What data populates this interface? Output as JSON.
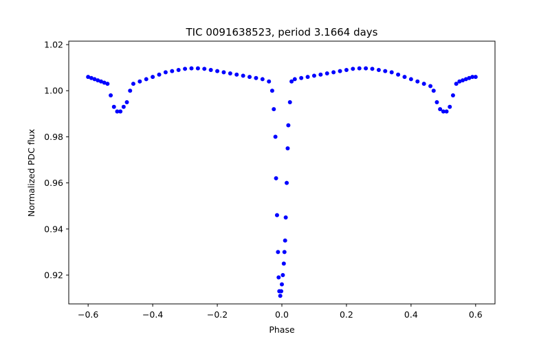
{
  "chart_data": {
    "type": "scatter",
    "title": "TIC 0091638523, period 3.1664 days",
    "xlabel": "Phase",
    "ylabel": "Normalized PDC flux",
    "xlim": [
      -0.66,
      0.66
    ],
    "ylim": [
      0.9075,
      1.0215
    ],
    "x_ticks": [
      -0.6,
      -0.4,
      -0.2,
      0.0,
      0.2,
      0.4,
      0.6
    ],
    "x_tick_labels": [
      "−0.6",
      "−0.4",
      "−0.2",
      "0.0",
      "0.2",
      "0.4",
      "0.6"
    ],
    "y_ticks": [
      0.92,
      0.94,
      0.96,
      0.98,
      1.0,
      1.02
    ],
    "y_tick_labels": [
      "0.92",
      "0.94",
      "0.96",
      "0.98",
      "1.00",
      "1.02"
    ],
    "grid": false,
    "legend": "none",
    "marker_color": "#0000ff",
    "series": [
      {
        "x": [
          -0.6,
          -0.59,
          -0.58,
          -0.57,
          -0.56,
          -0.55,
          -0.54,
          -0.53,
          -0.52,
          -0.51,
          -0.5,
          -0.49,
          -0.48,
          -0.47,
          -0.46,
          -0.44,
          -0.42,
          -0.4,
          -0.38,
          -0.36,
          -0.34,
          -0.32,
          -0.3,
          -0.28,
          -0.26,
          -0.24,
          -0.22,
          -0.2,
          -0.18,
          -0.16,
          -0.14,
          -0.12,
          -0.1,
          -0.08,
          -0.06,
          -0.04,
          -0.03,
          -0.025,
          -0.02,
          -0.018,
          -0.015,
          -0.012,
          -0.01,
          -0.008,
          -0.005,
          -0.002,
          0.0,
          0.003,
          0.006,
          0.008,
          0.01,
          0.012,
          0.015,
          0.018,
          0.02,
          0.025,
          0.03,
          0.04,
          0.06,
          0.08,
          0.1,
          0.12,
          0.14,
          0.16,
          0.18,
          0.2,
          0.22,
          0.24,
          0.26,
          0.28,
          0.3,
          0.32,
          0.34,
          0.36,
          0.38,
          0.4,
          0.42,
          0.44,
          0.46,
          0.47,
          0.48,
          0.49,
          0.5,
          0.51,
          0.52,
          0.53,
          0.54,
          0.55,
          0.56,
          0.57,
          0.58,
          0.59,
          0.6
        ],
        "y": [
          1.006,
          1.0055,
          1.005,
          1.0045,
          1.004,
          1.0035,
          1.003,
          0.998,
          0.993,
          0.991,
          0.991,
          0.993,
          0.995,
          1.0,
          1.003,
          1.004,
          1.005,
          1.006,
          1.007,
          1.008,
          1.0085,
          1.009,
          1.0095,
          1.0097,
          1.0097,
          1.0095,
          1.009,
          1.0085,
          1.008,
          1.0075,
          1.007,
          1.0065,
          1.006,
          1.0055,
          1.005,
          1.004,
          1.0,
          0.992,
          0.98,
          0.962,
          0.946,
          0.93,
          0.919,
          0.913,
          0.911,
          0.913,
          0.916,
          0.92,
          0.925,
          0.93,
          0.935,
          0.945,
          0.96,
          0.975,
          0.985,
          0.995,
          1.004,
          1.005,
          1.0055,
          1.006,
          1.0065,
          1.007,
          1.0075,
          1.008,
          1.0085,
          1.009,
          1.0095,
          1.0097,
          1.0097,
          1.0095,
          1.009,
          1.0085,
          1.008,
          1.007,
          1.006,
          1.005,
          1.004,
          1.003,
          1.002,
          1.0,
          0.995,
          0.992,
          0.991,
          0.991,
          0.993,
          0.998,
          1.003,
          1.004,
          1.0045,
          1.005,
          1.0055,
          1.006,
          1.006
        ]
      }
    ]
  }
}
